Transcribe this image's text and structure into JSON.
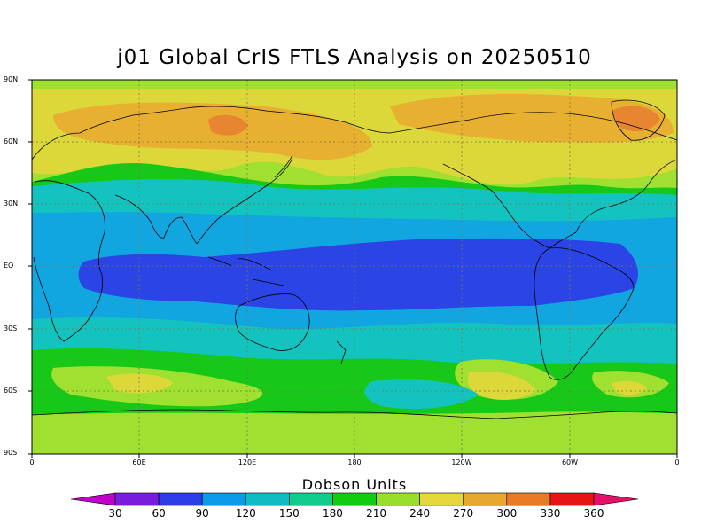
{
  "title": "j01 Global CrIS FTLS Analysis on 20250510",
  "lat_ticks": [
    "90N",
    "60N",
    "30N",
    "EQ",
    "30S",
    "60S",
    "90S"
  ],
  "lon_ticks": [
    "0",
    "60E",
    "120E",
    "180",
    "120W",
    "60W",
    "0"
  ],
  "colorbar": {
    "title": "Dobson Units",
    "labels": [
      "30",
      "60",
      "90",
      "120",
      "150",
      "180",
      "210",
      "240",
      "270",
      "300",
      "330",
      "360"
    ],
    "colors": [
      "#c000c8",
      "#7a1cdc",
      "#2b3ee6",
      "#0a9ae6",
      "#10bcc4",
      "#10cc8c",
      "#12cc12",
      "#9ade2c",
      "#e6d83a",
      "#e6a82e",
      "#e67a26",
      "#e61414",
      "#e6106a"
    ]
  },
  "legend_items": {
    "colors": [
      "#a0e030",
      "#ddd83a",
      "#e8b030",
      "#e88530",
      "#18c818",
      "#10cc90",
      "#12c3c0",
      "#12a6e0",
      "#2b44e6"
    ]
  }
}
